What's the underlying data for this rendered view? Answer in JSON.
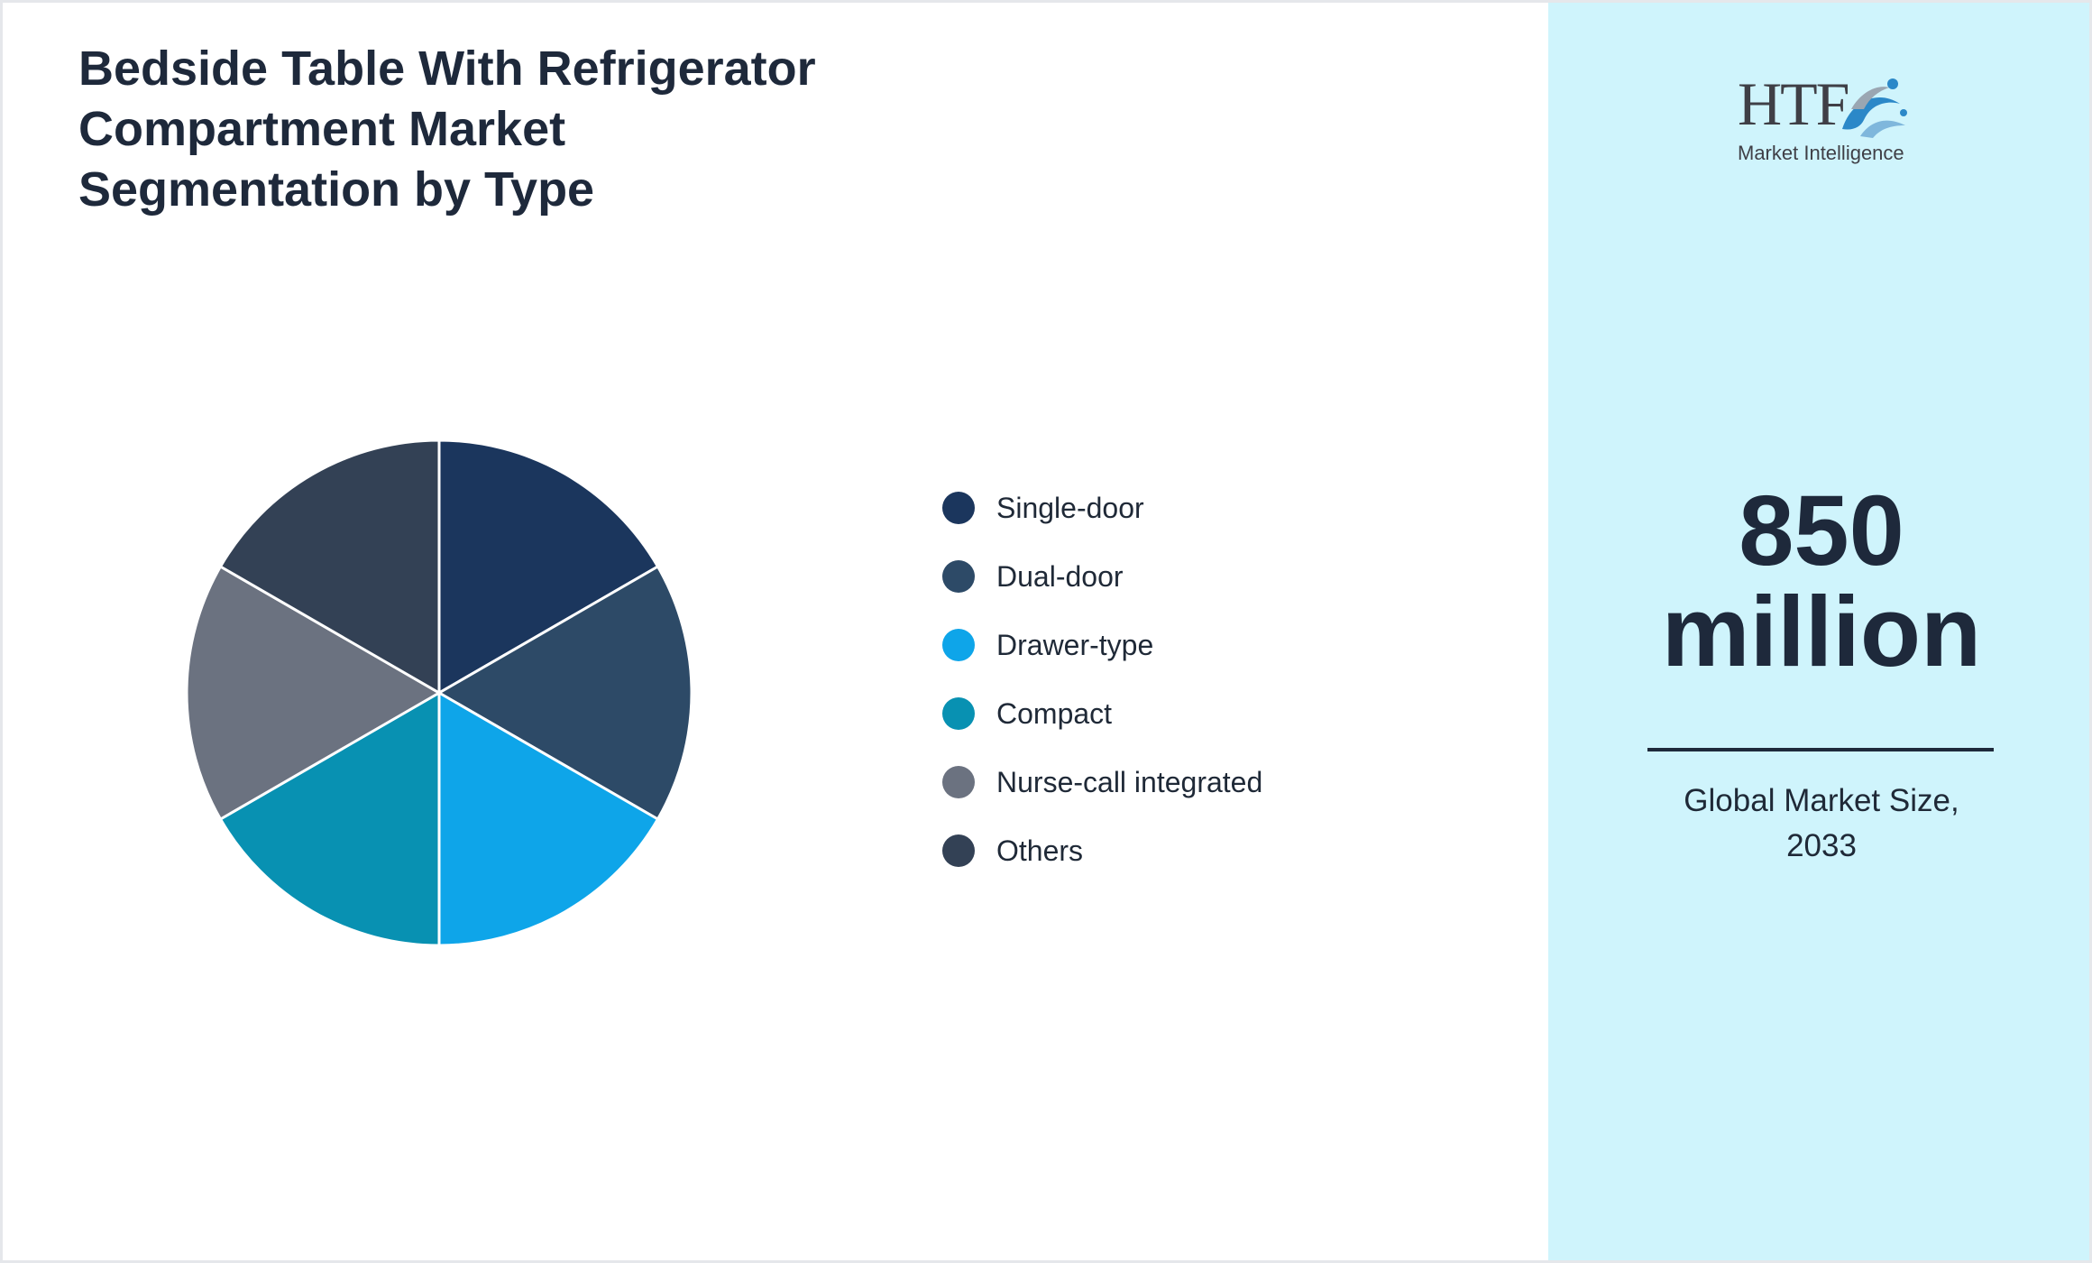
{
  "title_lines": [
    "Bedside Table With Refrigerator",
    "Compartment Market",
    "Segmentation by Type"
  ],
  "chart_data": {
    "type": "pie",
    "title": "Bedside Table With Refrigerator Compartment Market Segmentation by Type",
    "legend_position": "right",
    "slices": [
      {
        "label": "Single-door",
        "value": 16.67,
        "color": "#1b365d"
      },
      {
        "label": "Dual-door",
        "value": 16.67,
        "color": "#2d4a67"
      },
      {
        "label": "Drawer-type",
        "value": 16.67,
        "color": "#0ea5e9"
      },
      {
        "label": "Compact",
        "value": 16.67,
        "color": "#0891b2"
      },
      {
        "label": "Nurse-call integrated",
        "value": 16.67,
        "color": "#6b7280"
      },
      {
        "label": "Others",
        "value": 16.67,
        "color": "#334155"
      }
    ]
  },
  "side_panel": {
    "logo_text": "HTF",
    "logo_subtext": "Market Intelligence",
    "value_line1": "850",
    "value_line2": "million",
    "caption_line1": "Global Market Size,",
    "caption_line2": "2033"
  }
}
